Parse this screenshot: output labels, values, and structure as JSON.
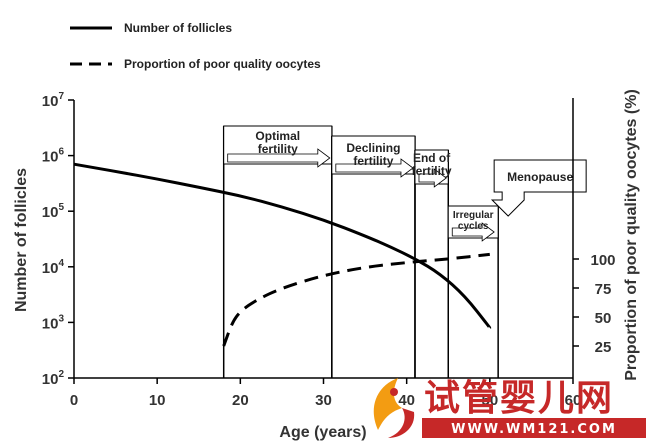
{
  "chart_data": {
    "type": "line",
    "legend": {
      "placement": "top-left",
      "items": [
        {
          "label": "Number of follicles",
          "style": "solid"
        },
        {
          "label": "Proportion of poor quality oocytes",
          "style": "dashed"
        }
      ]
    },
    "xlabel": "Age (years)",
    "ylabel_left": "Number of follicles",
    "ylabel_right": "Proportion of poor quality oocytes (%)",
    "xlim": [
      0,
      60
    ],
    "x_ticks": [
      "0",
      "10",
      "20",
      "30",
      "40",
      "50",
      "60"
    ],
    "left_axis": {
      "scale": "log",
      "ylim": [
        100,
        10000000
      ],
      "ticks": [
        {
          "base": "10",
          "exp": "2"
        },
        {
          "base": "10",
          "exp": "3"
        },
        {
          "base": "10",
          "exp": "4"
        },
        {
          "base": "10",
          "exp": "5"
        },
        {
          "base": "10",
          "exp": "6"
        },
        {
          "base": "10",
          "exp": "7"
        }
      ]
    },
    "right_axis": {
      "scale": "linear",
      "ticks": [
        "25",
        "50",
        "75",
        "100"
      ]
    },
    "series": [
      {
        "name": "Number of follicles",
        "style": "solid",
        "axis": "left",
        "x": [
          0,
          5,
          10,
          15,
          20,
          25,
          30,
          35,
          38,
          41,
          44,
          47,
          50
        ],
        "y": [
          700000,
          520000,
          380000,
          270000,
          190000,
          120000,
          70000,
          36000,
          23000,
          14000,
          7500,
          3000,
          800
        ]
      },
      {
        "name": "Proportion of poor quality oocytes",
        "style": "dashed",
        "axis": "right",
        "x": [
          18,
          19,
          20,
          22,
          25,
          30,
          35,
          40,
          45,
          50
        ],
        "y": [
          25,
          45,
          55,
          65,
          75,
          86,
          93,
          97,
          100,
          104
        ]
      }
    ],
    "phases": [
      {
        "label": "Optimal fertility",
        "lines": [
          "Optimal",
          "fertility"
        ],
        "x_start": 18,
        "x_end": 31
      },
      {
        "label": "Declining fertility",
        "lines": [
          "Declining",
          "fertility"
        ],
        "x_start": 31,
        "x_end": 41
      },
      {
        "label": "End of fertility",
        "lines": [
          "End of",
          "fertility"
        ],
        "x_start": 41,
        "x_end": 45
      },
      {
        "label": "Irregular cycles",
        "lines": [
          "Irregular",
          "cycles"
        ],
        "x_start": 45,
        "x_end": 51
      },
      {
        "label": "Menopause",
        "lines": [
          "Menopause"
        ],
        "x_start": 51,
        "x_end": 51
      }
    ]
  },
  "watermark": {
    "brand": "试管婴儿网",
    "url": "WWW.WM121.COM",
    "colors": {
      "accent": "#c62828",
      "logo_orange": "#f39c12"
    }
  }
}
